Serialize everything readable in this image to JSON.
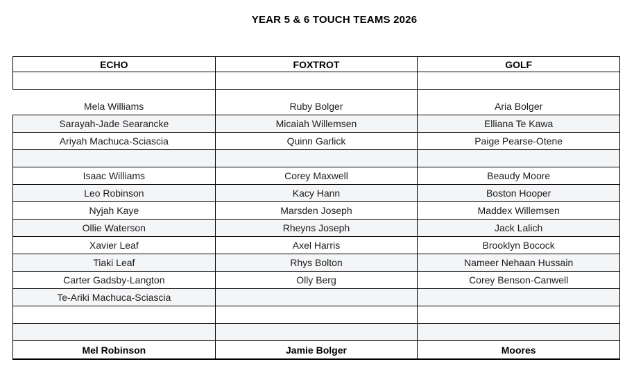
{
  "title": "YEAR 5 & 6 TOUCH TEAMS 2026",
  "table": {
    "columns": [
      "ECHO",
      "FOXTROT",
      "GOLF"
    ],
    "rows": [
      {
        "cells": [
          "",
          "",
          ""
        ]
      },
      {
        "cells": [
          "Mela Williams",
          "Ruby Bolger",
          "Aria Bolger"
        ],
        "tall": true
      },
      {
        "cells": [
          "Sarayah-Jade Searancke",
          "Micaiah Willemsen",
          "Elliana Te Kawa"
        ]
      },
      {
        "cells": [
          "Ariyah Machuca-Sciascia",
          "Quinn Garlick",
          "Paige Pearse-Otene"
        ]
      },
      {
        "cells": [
          "",
          "",
          ""
        ]
      },
      {
        "cells": [
          "Isaac Williams",
          "Corey Maxwell",
          "Beaudy Moore"
        ]
      },
      {
        "cells": [
          "Leo Robinson",
          "Kacy Hann",
          "Boston Hooper"
        ]
      },
      {
        "cells": [
          "Nyjah Kaye",
          "Marsden Joseph",
          "Maddex Willemsen"
        ]
      },
      {
        "cells": [
          "Ollie Waterson",
          "Rheyns Joseph",
          "Jack Lalich"
        ]
      },
      {
        "cells": [
          "Xavier Leaf",
          "Axel Harris",
          "Brooklyn Bocock"
        ]
      },
      {
        "cells": [
          "Tiaki Leaf",
          "Rhys Bolton",
          "Nameer Nehaan Hussain"
        ]
      },
      {
        "cells": [
          "Carter Gadsby-Langton",
          "Olly Berg",
          "Corey Benson-Canwell"
        ]
      },
      {
        "cells": [
          "Te-Ariki Machuca-Sciascia",
          "",
          ""
        ]
      },
      {
        "cells": [
          "",
          "",
          ""
        ]
      },
      {
        "cells": [
          "",
          "",
          ""
        ]
      },
      {
        "cells": [
          "Mel Robinson",
          "Jamie Bolger",
          "Moores"
        ],
        "bold": true
      }
    ]
  },
  "colors": {
    "row_shade": "#f4f5f7",
    "border": "#000000",
    "text": "#1b1b1b",
    "background": "#ffffff"
  }
}
